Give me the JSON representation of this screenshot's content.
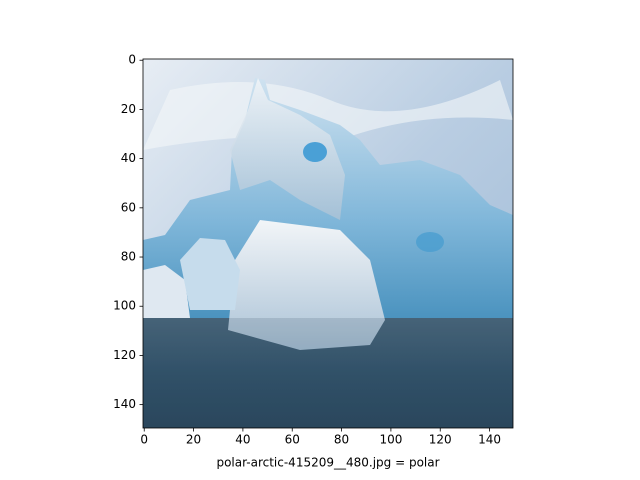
{
  "chart_data": {
    "type": "image",
    "xlabel": "polar-arctic-415209__480.jpg = polar",
    "xlim": [
      -0.5,
      149.5
    ],
    "ylim": [
      149.5,
      -0.5
    ],
    "xticks": [
      0,
      20,
      40,
      60,
      80,
      100,
      120,
      140
    ],
    "yticks": [
      0,
      20,
      40,
      60,
      80,
      100,
      120,
      140
    ]
  }
}
